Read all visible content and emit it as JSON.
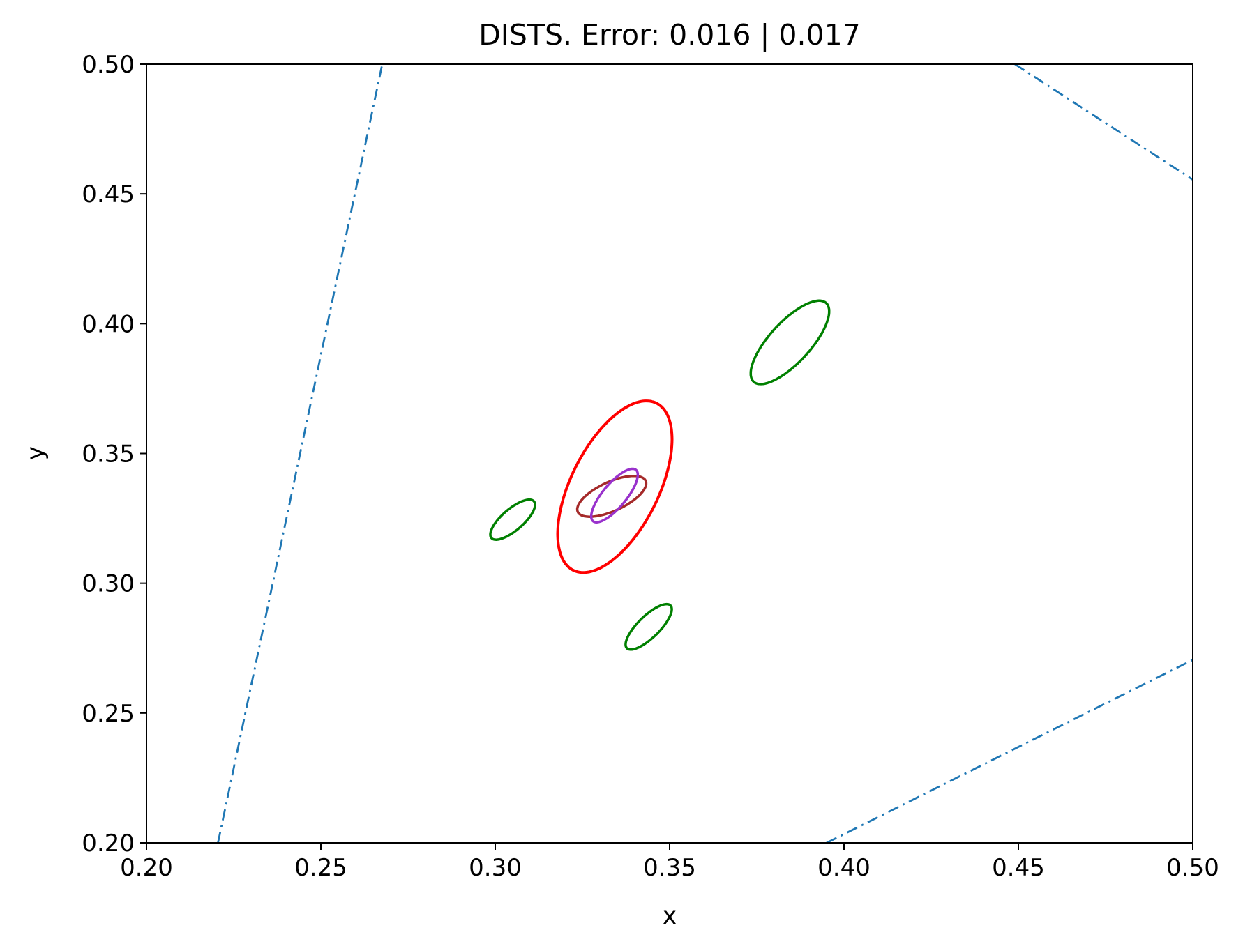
{
  "chart_data": {
    "type": "line",
    "title": "DISTS. Error: 0.016 | 0.017",
    "xlabel": "x",
    "ylabel": "y",
    "xlim": [
      0.2,
      0.5
    ],
    "ylim": [
      0.2,
      0.5
    ],
    "xticks": [
      "0.20",
      "0.25",
      "0.30",
      "0.35",
      "0.40",
      "0.45",
      "0.50"
    ],
    "yticks": [
      "0.20",
      "0.25",
      "0.30",
      "0.35",
      "0.40",
      "0.45",
      "0.50"
    ],
    "grid": false,
    "lines": [
      {
        "color": "#1f77b4",
        "style": "dashdot",
        "points": [
          [
            0.2205,
            0.2
          ],
          [
            0.2676,
            0.5
          ]
        ]
      },
      {
        "color": "#1f77b4",
        "style": "dashdot",
        "points": [
          [
            0.449,
            0.5
          ],
          [
            0.5,
            0.4555
          ]
        ]
      },
      {
        "color": "#1f77b4",
        "style": "dashdot",
        "points": [
          [
            0.395,
            0.2
          ],
          [
            0.5,
            0.2705
          ]
        ]
      }
    ],
    "ellipses": [
      {
        "color": "#ff0000",
        "cx": 0.3343,
        "cy": 0.3372,
        "a": 0.0345,
        "b": 0.0131,
        "angle_deg": 72,
        "width": 4
      },
      {
        "color": "#008000",
        "cx": 0.3845,
        "cy": 0.3928,
        "a": 0.0185,
        "b": 0.0065,
        "angle_deg": 58,
        "width": 3.5
      },
      {
        "color": "#008000",
        "cx": 0.305,
        "cy": 0.3245,
        "a": 0.0094,
        "b": 0.0035,
        "angle_deg": 52,
        "width": 3.5
      },
      {
        "color": "#008000",
        "cx": 0.344,
        "cy": 0.2832,
        "a": 0.0104,
        "b": 0.0035,
        "angle_deg": 55,
        "width": 3.5
      },
      {
        "color": "#a52a2a",
        "cx": 0.3334,
        "cy": 0.3335,
        "a": 0.0115,
        "b": 0.0052,
        "angle_deg": 35,
        "width": 3.5
      },
      {
        "color": "#9932cc",
        "cx": 0.3342,
        "cy": 0.3338,
        "a": 0.0117,
        "b": 0.0037,
        "angle_deg": 60,
        "width": 3.5
      }
    ]
  }
}
